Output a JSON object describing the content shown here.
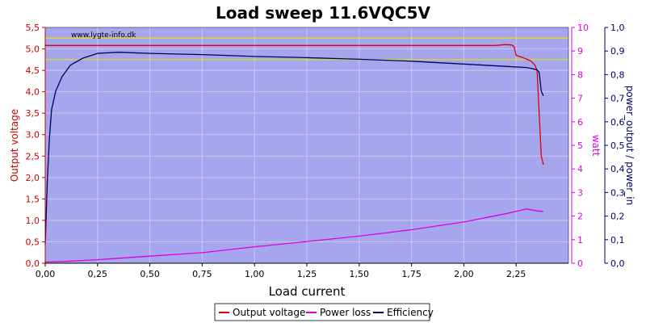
{
  "chart_data": {
    "type": "line",
    "title": "Load sweep 11.6VQC5V",
    "watermark": "www.lygte-info.dk",
    "xlabel": "Load current",
    "y_left_label": "Output voltage",
    "y_right1_label": "watt",
    "y_right2_label": "power_output / power_in",
    "xlim": [
      0,
      2.5
    ],
    "ylim_left": [
      0,
      5.5
    ],
    "ylim_right1": [
      0,
      10
    ],
    "ylim_right2": [
      0,
      1.0
    ],
    "x_ticks": [
      "0,00",
      "0,25",
      "0,50",
      "0,75",
      "1,00",
      "1,25",
      "1,50",
      "1,75",
      "2,00",
      "2,25"
    ],
    "y_left_ticks": [
      "0,0",
      "0,5",
      "1,0",
      "1,5",
      "2,0",
      "2,5",
      "3,0",
      "3,5",
      "4,0",
      "4,5",
      "5,0",
      "5,5"
    ],
    "y_right1_ticks": [
      "0",
      "1",
      "2",
      "3",
      "4",
      "5",
      "6",
      "7",
      "8",
      "9",
      "10"
    ],
    "y_right2_ticks": [
      "0,0",
      "0,1",
      "0,2",
      "0,3",
      "0,4",
      "0,5",
      "0,6",
      "0,7",
      "0,8",
      "0,9",
      "1,0"
    ],
    "reference_lines_left": [
      5.25,
      4.75
    ],
    "colors": {
      "plot_bg": "#a6a6ee",
      "grid": "#c8c8f0",
      "voltage": "#dd0000",
      "power_loss": "#dd00dd",
      "efficiency": "#000066",
      "reference": "#e0e000",
      "left_axis": "#cc0000",
      "right1_axis": "#dd00dd",
      "right2_axis": "#000066"
    },
    "series": [
      {
        "name": "Output voltage",
        "axis": "left",
        "x": [
          0,
          0.1,
          0.3,
          0.5,
          0.8,
          1.0,
          1.3,
          1.6,
          1.9,
          2.1,
          2.15,
          2.2,
          2.23,
          2.24,
          2.25,
          2.28,
          2.32,
          2.34,
          2.35,
          2.36,
          2.37,
          2.38
        ],
        "values": [
          5.08,
          5.08,
          5.08,
          5.08,
          5.08,
          5.08,
          5.08,
          5.08,
          5.08,
          5.08,
          5.08,
          5.1,
          5.09,
          5.05,
          4.85,
          4.8,
          4.72,
          4.62,
          4.5,
          3.5,
          2.5,
          2.3
        ]
      },
      {
        "name": "Power loss",
        "axis": "right1",
        "x": [
          0,
          0.1,
          0.25,
          0.5,
          0.75,
          1.0,
          1.25,
          1.5,
          1.75,
          2.0,
          2.2,
          2.3,
          2.35,
          2.38
        ],
        "values": [
          0.05,
          0.08,
          0.15,
          0.3,
          0.45,
          0.7,
          0.92,
          1.15,
          1.42,
          1.75,
          2.1,
          2.3,
          2.22,
          2.2
        ]
      },
      {
        "name": "Efficiency",
        "axis": "right2",
        "x": [
          0,
          0.01,
          0.02,
          0.03,
          0.05,
          0.08,
          0.12,
          0.18,
          0.25,
          0.35,
          0.5,
          0.75,
          1.0,
          1.25,
          1.5,
          1.75,
          2.0,
          2.2,
          2.3,
          2.33,
          2.35,
          2.36,
          2.37,
          2.38
        ],
        "values": [
          0.08,
          0.35,
          0.53,
          0.65,
          0.73,
          0.79,
          0.84,
          0.87,
          0.89,
          0.895,
          0.89,
          0.885,
          0.877,
          0.872,
          0.865,
          0.857,
          0.845,
          0.835,
          0.83,
          0.825,
          0.82,
          0.81,
          0.73,
          0.71
        ]
      }
    ],
    "legend": [
      "Output voltage",
      "Power loss",
      "Efficiency"
    ],
    "legend_position": "bottom-center",
    "grid": true
  }
}
